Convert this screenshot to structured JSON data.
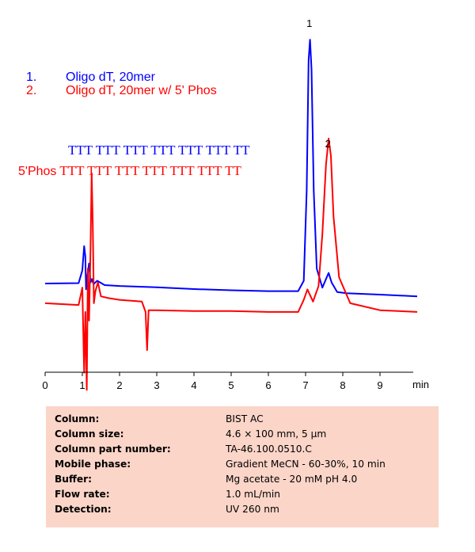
{
  "chart_data": {
    "type": "line",
    "xlabel": "min",
    "xlim": [
      0,
      10
    ],
    "xticks": [
      0,
      1,
      2,
      3,
      4,
      5,
      6,
      7,
      8,
      9
    ],
    "grid": false,
    "legend": "top-left",
    "series": [
      {
        "name": "Oligo dT, 20mer",
        "color": "#0000ff",
        "baseline_offset": 0.64,
        "x": [
          0,
          0.9,
          1.0,
          1.05,
          1.08,
          1.1,
          1.13,
          1.18,
          1.22,
          1.26,
          1.3,
          1.4,
          1.6,
          2,
          3,
          4,
          5,
          6,
          6.8,
          6.95,
          7.03,
          7.08,
          7.12,
          7.16,
          7.22,
          7.3,
          7.45,
          7.55,
          7.62,
          7.7,
          7.85,
          8.1,
          9,
          10
        ],
        "y": [
          0.64,
          0.66,
          1.4,
          2.8,
          2.2,
          0.3,
          1.0,
          1.8,
          0.7,
          0.9,
          0.6,
          0.8,
          0.55,
          0.5,
          0.42,
          0.32,
          0.25,
          0.2,
          0.2,
          0.8,
          6.0,
          13.5,
          14.7,
          13.0,
          6.0,
          1.5,
          0.4,
          0.9,
          1.25,
          0.7,
          0.15,
          0.08,
          0.0,
          -0.1
        ]
      },
      {
        "name": "Oligo dT, 20mer w/ 5' Phos",
        "color": "#ff0000",
        "baseline_offset": -0.5,
        "x": [
          0,
          0.9,
          1.0,
          1.05,
          1.08,
          1.12,
          1.15,
          1.18,
          1.22,
          1.25,
          1.28,
          1.31,
          1.35,
          1.42,
          1.5,
          1.7,
          2,
          2.6,
          2.7,
          2.74,
          2.78,
          2.85,
          3,
          4,
          5,
          6,
          6.8,
          6.95,
          7.05,
          7.2,
          7.35,
          7.45,
          7.55,
          7.62,
          7.68,
          7.75,
          7.9,
          8.2,
          9,
          10
        ],
        "y": [
          -0.5,
          -0.6,
          0.4,
          -4.5,
          -1.0,
          -5.5,
          1.5,
          -1.5,
          2.5,
          7.0,
          4.0,
          -0.5,
          0.2,
          0.7,
          -0.1,
          -0.2,
          -0.3,
          -0.4,
          -1.0,
          -3.2,
          -0.9,
          -0.9,
          -0.9,
          -0.95,
          -0.95,
          -1.0,
          -1.0,
          -0.3,
          0.3,
          -0.4,
          0.5,
          3.5,
          7.5,
          9.0,
          8.0,
          4.5,
          1.0,
          -0.5,
          -0.9,
          -1.0
        ]
      }
    ],
    "annotations": [
      {
        "text": "1",
        "x": 7.1
      },
      {
        "text": "2",
        "x": 7.6
      }
    ]
  },
  "legend": [
    {
      "number": "1.",
      "text": "Oligo dT, 20mer",
      "color": "#0000ff"
    },
    {
      "number": "2.",
      "text": "Oligo dT, 20mer w/ 5' Phos",
      "color": "#ff0000"
    }
  ],
  "sequences": {
    "blue": {
      "prefix": "",
      "text": "TTT TTT TTT TTT TTT TTT TT",
      "color": "#0000ff"
    },
    "red": {
      "prefix": "5'Phos",
      "text": "TTT TTT TTT TTT TTT TTT TT",
      "color": "#ff0000"
    }
  },
  "info_table": [
    {
      "label": "Column:",
      "value": "BIST AC"
    },
    {
      "label": "Column size:",
      "value": "4.6 × 100 mm, 5 µm"
    },
    {
      "label": "Column part number:",
      "value": "TA-46.100.0510.C"
    },
    {
      "label": "Mobile phase:",
      "value": "Gradient  MeCN  - 60-30%, 10 min"
    },
    {
      "label": "Buffer:",
      "value": "Mg acetate - 20 mM  pH 4.0"
    },
    {
      "label": "Flow rate:",
      "value": "1.0 mL/min"
    },
    {
      "label": "Detection:",
      "value": "UV 260 nm"
    }
  ]
}
